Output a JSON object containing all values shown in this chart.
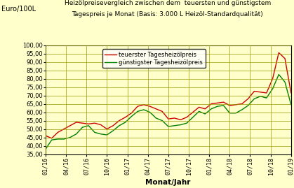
{
  "title_line1": "Heizölpreisevergleich zwischen dem  teuersten und günstigstem",
  "title_line2": "Tagespreis je Monat (Basis: 3.000 L Heizöl-Standardqualität)",
  "ylabel_top": "Euro/100L",
  "xlabel": "Monat/Jahr",
  "ylim": [
    35,
    100
  ],
  "yticks": [
    35,
    40,
    45,
    50,
    55,
    60,
    65,
    70,
    75,
    80,
    85,
    90,
    95,
    100
  ],
  "xtick_labels": [
    "01/16",
    "04/16",
    "07/16",
    "10/16",
    "01/17",
    "04/17",
    "07/17",
    "10/17",
    "01/18",
    "04/18",
    "07/18",
    "10/18",
    "01/19"
  ],
  "legend_teuerster": "teuerster Tagesheizölpreis",
  "legend_guenstigster": "günstigster Tagesheizölpreis",
  "color_teuerster": "#cc0000",
  "color_guenstigster": "#008000",
  "bg_color": "#ffffcc",
  "grid_color": "#999900",
  "teuerster": [
    46.0,
    44.5,
    48.0,
    50.0,
    52.0,
    54.0,
    53.5,
    53.0,
    53.5,
    52.5,
    50.0,
    52.0,
    55.0,
    57.0,
    59.5,
    63.5,
    64.5,
    63.5,
    62.0,
    60.5,
    56.0,
    56.5,
    55.5,
    57.0,
    60.0,
    63.0,
    62.0,
    65.0,
    65.5,
    66.0,
    64.0,
    64.5,
    65.0,
    68.0,
    72.5,
    72.0,
    71.5,
    80.0,
    95.5,
    92.0,
    71.5
  ],
  "guenstigster": [
    38.0,
    43.5,
    44.0,
    44.0,
    45.0,
    47.0,
    51.0,
    52.0,
    48.0,
    47.0,
    46.5,
    49.0,
    52.0,
    54.0,
    57.5,
    60.5,
    61.5,
    60.0,
    56.5,
    55.0,
    51.5,
    52.0,
    52.5,
    53.5,
    57.0,
    60.5,
    59.0,
    62.0,
    63.5,
    64.0,
    59.5,
    59.5,
    61.5,
    64.0,
    68.0,
    69.5,
    68.5,
    74.0,
    82.5,
    78.0,
    64.5
  ]
}
